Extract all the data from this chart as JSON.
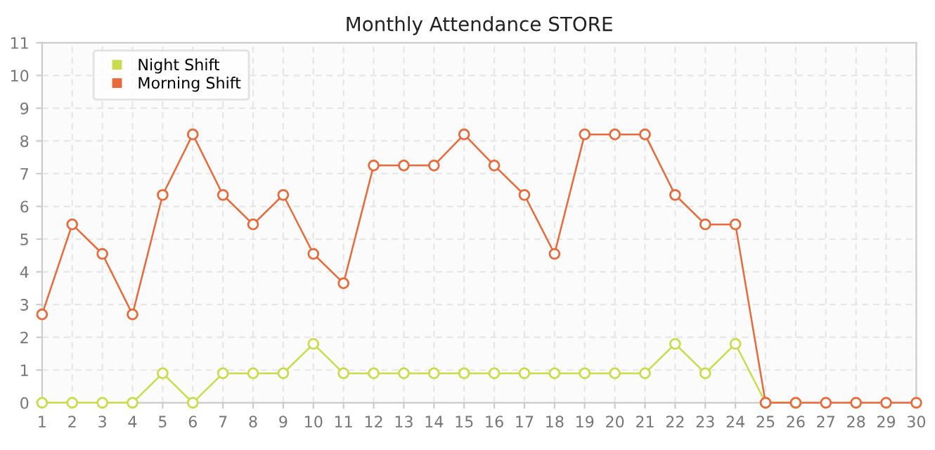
{
  "chart_data": {
    "type": "line",
    "title": "Monthly Attendance STORE",
    "x": [
      1,
      2,
      3,
      4,
      5,
      6,
      7,
      8,
      9,
      10,
      11,
      12,
      13,
      14,
      15,
      16,
      17,
      18,
      19,
      20,
      21,
      22,
      23,
      24,
      25,
      26,
      27,
      28,
      29,
      30
    ],
    "series": [
      {
        "name": "Night Shift",
        "color": "#c8dc4c",
        "values": [
          0,
          0,
          0,
          0,
          0.9,
          0,
          0.9,
          0.9,
          0.9,
          1.8,
          0.9,
          0.9,
          0.9,
          0.9,
          0.9,
          0.9,
          0.9,
          0.9,
          0.9,
          0.9,
          0.9,
          1.8,
          0.9,
          1.8,
          0,
          0,
          null,
          null,
          null,
          null
        ]
      },
      {
        "name": "Morning Shift",
        "color": "#e8693a",
        "values": [
          2.7,
          5.45,
          4.55,
          2.7,
          6.35,
          8.2,
          6.35,
          5.45,
          6.35,
          4.55,
          3.65,
          7.25,
          7.25,
          7.25,
          8.2,
          7.25,
          6.35,
          4.55,
          8.2,
          8.2,
          8.2,
          6.35,
          5.45,
          5.45,
          0,
          0,
          0,
          0,
          0,
          0
        ]
      }
    ],
    "xlim": [
      1,
      30
    ],
    "xticks": [
      1,
      2,
      3,
      4,
      5,
      6,
      7,
      8,
      9,
      10,
      11,
      12,
      13,
      14,
      15,
      16,
      17,
      18,
      19,
      20,
      21,
      22,
      23,
      24,
      25,
      26,
      27,
      28,
      29,
      30
    ],
    "ylim": [
      0,
      11
    ],
    "yticks": [
      0,
      1,
      2,
      3,
      4,
      5,
      6,
      7,
      8,
      9,
      10,
      11
    ],
    "grid": true,
    "legend": "top left",
    "marker": "circle",
    "line_style": "solid"
  }
}
